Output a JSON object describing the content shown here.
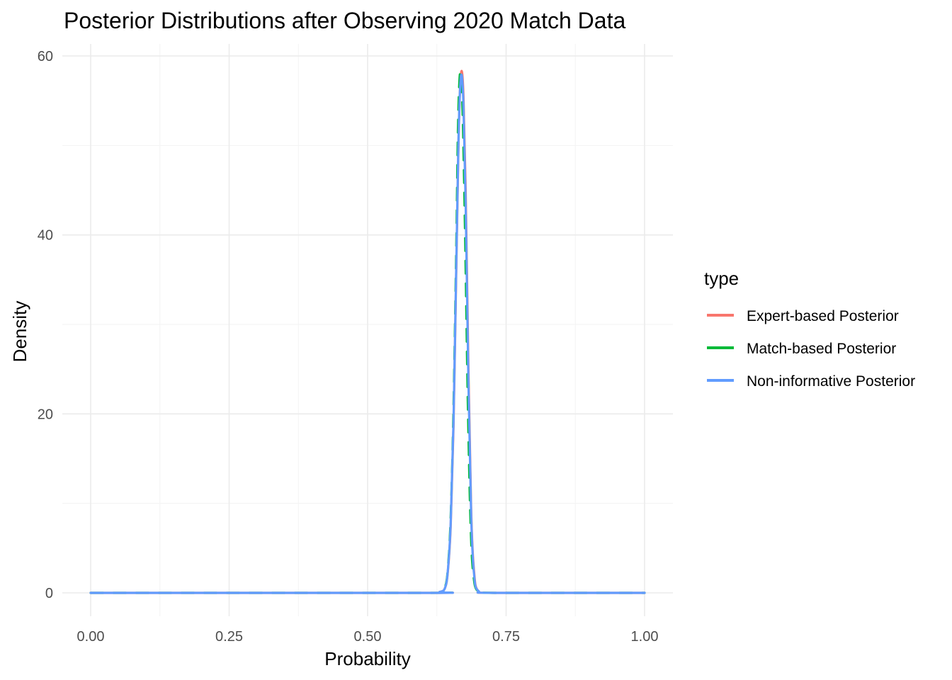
{
  "chart_data": {
    "type": "line",
    "title": "Posterior Distributions after Observing 2020 Match Data",
    "xlabel": "Probability",
    "ylabel": "Density",
    "xlim": [
      0,
      1
    ],
    "ylim": [
      0,
      60
    ],
    "x_ticks": [
      "0.00",
      "0.25",
      "0.50",
      "0.75",
      "1.00"
    ],
    "y_ticks": [
      "0",
      "20",
      "40",
      "60"
    ],
    "grid": true,
    "legend": {
      "title": "type",
      "placement": "right"
    },
    "series": [
      {
        "name": "Expert-based Posterior",
        "color": "#F8766D",
        "x": [
          0.0,
          0.6,
          0.63,
          0.64,
          0.645,
          0.65,
          0.655,
          0.66,
          0.664,
          0.667,
          0.67,
          0.673,
          0.677,
          0.682,
          0.687,
          0.692,
          0.7,
          0.73,
          1.0
        ],
        "y": [
          0,
          0,
          0.1,
          0.6,
          2.5,
          7.5,
          18.5,
          36,
          50,
          56.5,
          58.3,
          55.5,
          45,
          25,
          9,
          2.5,
          0.2,
          0,
          0
        ]
      },
      {
        "name": "Match-based Posterior",
        "color": "#00BA38",
        "x": [
          0.0,
          0.6,
          0.63,
          0.64,
          0.645,
          0.65,
          0.655,
          0.66,
          0.663,
          0.666,
          0.669,
          0.672,
          0.676,
          0.681,
          0.686,
          0.691,
          0.7,
          0.73,
          1.0
        ],
        "y": [
          0,
          0,
          0.1,
          0.7,
          2.8,
          8.5,
          20.5,
          38.5,
          51.5,
          57.5,
          57.5,
          52.5,
          40,
          21,
          7.5,
          2,
          0.15,
          0,
          0
        ]
      },
      {
        "name": "Non-informative Posterior",
        "color": "#619CFF",
        "x": [
          0.0,
          0.6,
          0.63,
          0.64,
          0.645,
          0.65,
          0.655,
          0.66,
          0.664,
          0.667,
          0.67,
          0.673,
          0.677,
          0.682,
          0.687,
          0.692,
          0.7,
          0.73,
          1.0
        ],
        "y": [
          0,
          0,
          0.1,
          0.6,
          2.6,
          7.8,
          19,
          36.5,
          50.5,
          56.5,
          57.8,
          54.5,
          43.5,
          23.5,
          8.5,
          2.2,
          0.2,
          0,
          0
        ]
      }
    ]
  }
}
